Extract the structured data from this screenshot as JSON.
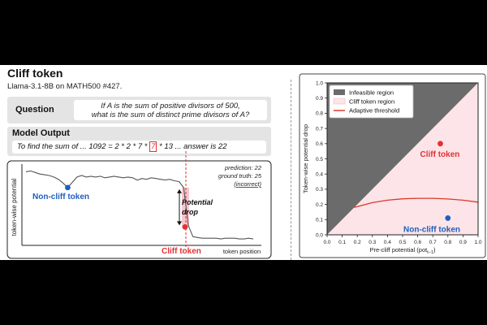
{
  "left_panel": {
    "title": "Cliff token",
    "subtitle": "Llama-3.1-8B on MATH500 #427.",
    "question_label": "Question",
    "question_lines": [
      "If A is the sum of positive divisors of 500,",
      "what is the sum of distinct prime divisors of A?"
    ],
    "model_output_label": "Model Output",
    "model_output_prefix": "To find the sum of ... 1092 = 2 * 2 * 7 *",
    "model_output_token": "7",
    "model_output_suffix": "* 13 ... answer is 22",
    "plot": {
      "ylabel": "token-wise potential",
      "xlabel": "token position",
      "non_cliff_label": "Non-cliff token",
      "cliff_label": "Cliff token",
      "drop_label_line1": "Potential",
      "drop_label_line2": "drop",
      "prediction": "prediction: 22",
      "ground_truth": "ground truth: 25",
      "verdict": "(incorrect)",
      "potential_values": [
        0.91,
        0.92,
        0.9,
        0.88,
        0.87,
        0.86,
        0.84,
        0.81,
        0.76,
        0.7,
        0.77,
        0.84,
        0.86,
        0.84,
        0.85,
        0.84,
        0.85,
        0.83,
        0.84,
        0.85,
        0.84,
        0.83,
        0.84,
        0.83,
        0.8,
        0.82,
        0.81,
        0.83,
        0.82,
        0.81,
        0.8,
        0.81,
        0.79,
        0.78,
        0.7,
        0.2,
        0.05,
        0.04,
        0.03,
        0.03,
        0.03,
        0.03,
        0.02,
        0.03,
        0.03,
        0.03,
        0.02,
        0.02,
        0.03,
        0.02
      ],
      "non_cliff_index": 9,
      "cliff_index": 35,
      "colors": {
        "line": "#555555",
        "non_cliff": "#1f5fbf",
        "cliff": "#e53030",
        "drop_band": "#f6c6cf"
      }
    }
  },
  "right_chart": {
    "chart_data": {
      "type": "scatter",
      "xlabel": "Pre-cliff potential  (pot",
      "xlabel_sub": "t−1",
      "xlabel_end": ")",
      "ylabel": "Token-wise potential drop",
      "xlim": [
        0,
        1
      ],
      "ylim": [
        0,
        1
      ],
      "ticks": [
        "0.0",
        "0.1",
        "0.2",
        "0.3",
        "0.4",
        "0.5",
        "0.6",
        "0.7",
        "0.8",
        "0.9",
        "1.0"
      ],
      "legend": [
        "Infeasible region",
        "Cliff token region",
        "Adaptive threshold"
      ],
      "legend_placement": "top-left",
      "points": [
        {
          "name": "Cliff token",
          "x": 0.75,
          "y": 0.6,
          "color": "#e53030"
        },
        {
          "name": "Non-cliff token",
          "x": 0.8,
          "y": 0.11,
          "color": "#1f5fbf"
        }
      ],
      "threshold_curve": {
        "x": [
          0.18,
          0.3,
          0.4,
          0.5,
          0.6,
          0.7,
          0.8,
          0.9,
          1.0
        ],
        "y": [
          0.18,
          0.212,
          0.228,
          0.237,
          0.24,
          0.24,
          0.236,
          0.228,
          0.215
        ]
      },
      "colors": {
        "infeasible": "#6b6b6b",
        "cliff_region": "#fce4e8",
        "threshold": "#d93a2b"
      }
    }
  }
}
